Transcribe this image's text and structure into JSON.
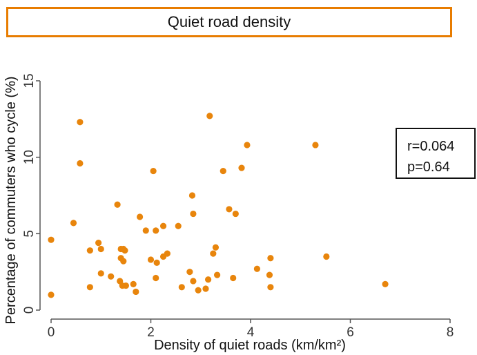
{
  "chart_data": {
    "type": "scatter",
    "title": "Quiet road density",
    "xlabel": "Density of quiet roads (km/km²)",
    "ylabel": "Percentage of commuters who cycle (%)",
    "xlim": [
      0,
      8
    ],
    "ylim": [
      0,
      15
    ],
    "xticks": [
      "0",
      "2",
      "4",
      "6",
      "8"
    ],
    "yticks": [
      "0",
      "5",
      "10",
      "15"
    ],
    "grid": false,
    "point_color": "#e8850c",
    "annotation": {
      "r": "r=0.064",
      "p": "p=0.64"
    },
    "x": [
      0.0,
      0.0,
      0.45,
      0.58,
      0.58,
      0.78,
      0.78,
      0.95,
      1.0,
      1.0,
      1.2,
      1.33,
      1.38,
      1.4,
      1.4,
      1.43,
      1.45,
      1.45,
      1.48,
      1.5,
      1.65,
      1.7,
      1.78,
      1.9,
      2.0,
      2.05,
      2.1,
      2.1,
      2.12,
      2.25,
      2.25,
      2.33,
      2.55,
      2.62,
      2.78,
      2.83,
      2.85,
      2.85,
      2.95,
      3.1,
      3.15,
      3.18,
      3.25,
      3.3,
      3.33,
      3.45,
      3.57,
      3.65,
      3.7,
      3.82,
      3.93,
      4.13,
      4.38,
      4.4,
      4.4,
      5.3,
      5.52,
      6.7
    ],
    "y": [
      4.6,
      1.0,
      5.7,
      12.3,
      9.6,
      3.9,
      1.5,
      4.4,
      4.0,
      2.4,
      2.2,
      6.9,
      1.9,
      4.0,
      3.4,
      1.6,
      3.2,
      4.0,
      3.9,
      1.6,
      1.7,
      1.2,
      6.1,
      5.2,
      3.3,
      9.1,
      5.2,
      2.1,
      3.1,
      5.5,
      3.5,
      3.7,
      5.5,
      1.5,
      2.5,
      7.5,
      6.3,
      1.9,
      1.3,
      1.4,
      2.0,
      12.7,
      3.7,
      4.1,
      2.3,
      9.1,
      6.6,
      2.1,
      6.3,
      9.3,
      10.8,
      2.7,
      2.3,
      1.5,
      3.4,
      10.8,
      3.5,
      1.7
    ]
  }
}
